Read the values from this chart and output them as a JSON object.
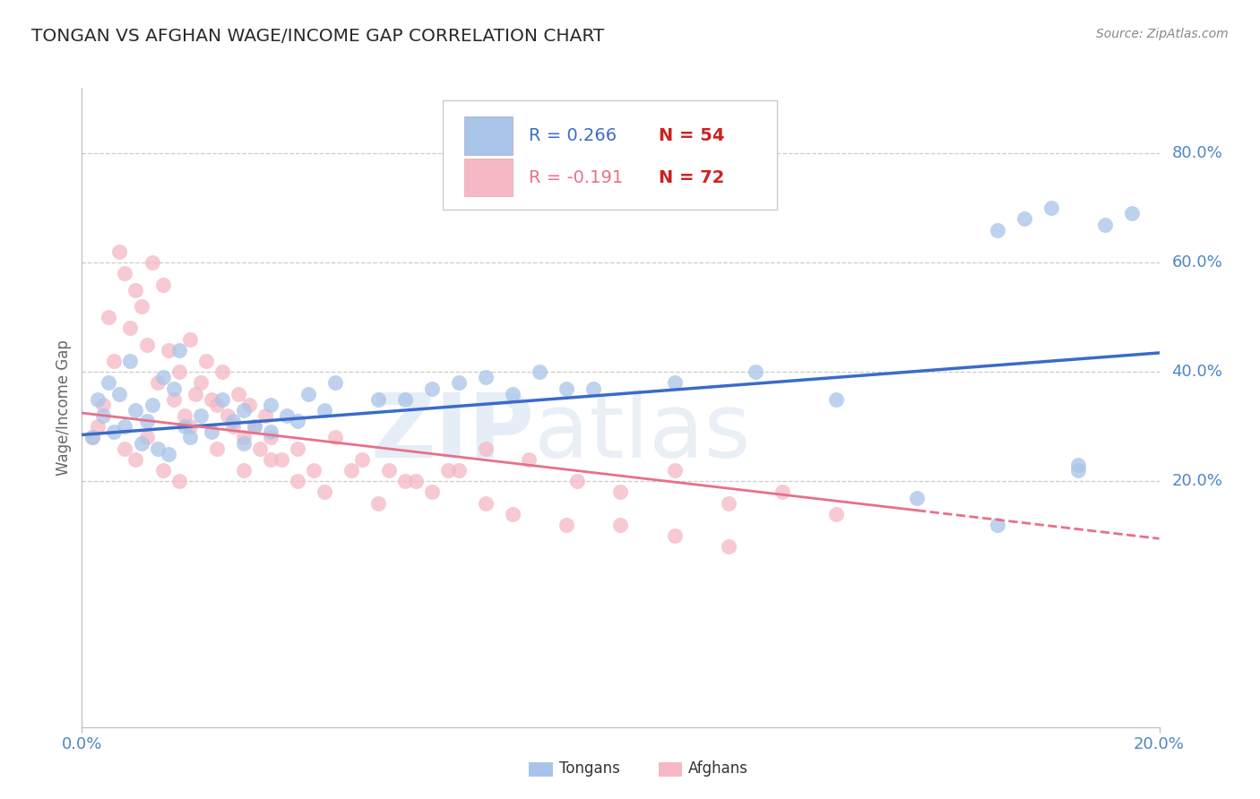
{
  "title": "TONGAN VS AFGHAN WAGE/INCOME GAP CORRELATION CHART",
  "source_text": "Source: ZipAtlas.com",
  "ylabel": "Wage/Income Gap",
  "watermark_zip": "ZIP",
  "watermark_atlas": "atlas",
  "xmin": 0.0,
  "xmax": 0.2,
  "ymin": -0.25,
  "ymax": 0.92,
  "ytick_vals": [
    0.2,
    0.4,
    0.6,
    0.8
  ],
  "ytick_labels": [
    "20.0%",
    "40.0%",
    "60.0%",
    "80.0%"
  ],
  "xtick_vals": [
    0.0,
    0.2
  ],
  "xtick_labels": [
    "0.0%",
    "20.0%"
  ],
  "legend_tongan_R": "R = 0.266",
  "legend_tongan_N": "N = 54",
  "legend_afghan_R": "R = -0.191",
  "legend_afghan_N": "N = 72",
  "tongan_color": "#A8C4E8",
  "afghan_color": "#F5B8C4",
  "tongan_line_color": "#3B6BC9",
  "afghan_line_color": "#E8708A",
  "legend_color_tongan": "#3B6BC9",
  "legend_color_afghan": "#E8708A",
  "legend_N_color": "#CC2222",
  "grid_color": "#CCCCCC",
  "title_color": "#2A2A2A",
  "axis_tick_color": "#4D86C5",
  "background_color": "#FFFFFF",
  "tongan_scatter_x": [
    0.002,
    0.003,
    0.004,
    0.005,
    0.006,
    0.007,
    0.008,
    0.009,
    0.01,
    0.011,
    0.012,
    0.013,
    0.014,
    0.015,
    0.016,
    0.017,
    0.018,
    0.019,
    0.02,
    0.022,
    0.024,
    0.026,
    0.028,
    0.03,
    0.032,
    0.035,
    0.038,
    0.042,
    0.047,
    0.055,
    0.065,
    0.075,
    0.085,
    0.095,
    0.11,
    0.125,
    0.14,
    0.155,
    0.17,
    0.185,
    0.17,
    0.175,
    0.18,
    0.185,
    0.19,
    0.195,
    0.06,
    0.07,
    0.08,
    0.09,
    0.03,
    0.035,
    0.04,
    0.045
  ],
  "tongan_scatter_y": [
    0.28,
    0.35,
    0.32,
    0.38,
    0.29,
    0.36,
    0.3,
    0.42,
    0.33,
    0.27,
    0.31,
    0.34,
    0.26,
    0.39,
    0.25,
    0.37,
    0.44,
    0.3,
    0.28,
    0.32,
    0.29,
    0.35,
    0.31,
    0.33,
    0.3,
    0.34,
    0.32,
    0.36,
    0.38,
    0.35,
    0.37,
    0.39,
    0.4,
    0.37,
    0.38,
    0.4,
    0.35,
    0.17,
    0.12,
    0.23,
    0.66,
    0.68,
    0.7,
    0.22,
    0.67,
    0.69,
    0.35,
    0.38,
    0.36,
    0.37,
    0.27,
    0.29,
    0.31,
    0.33
  ],
  "afghan_scatter_x": [
    0.002,
    0.003,
    0.004,
    0.005,
    0.006,
    0.007,
    0.008,
    0.009,
    0.01,
    0.011,
    0.012,
    0.013,
    0.014,
    0.015,
    0.016,
    0.017,
    0.018,
    0.019,
    0.02,
    0.021,
    0.022,
    0.023,
    0.024,
    0.025,
    0.026,
    0.027,
    0.028,
    0.029,
    0.03,
    0.031,
    0.032,
    0.033,
    0.034,
    0.035,
    0.037,
    0.04,
    0.043,
    0.047,
    0.052,
    0.057,
    0.062,
    0.068,
    0.075,
    0.083,
    0.092,
    0.1,
    0.11,
    0.12,
    0.13,
    0.14,
    0.008,
    0.01,
    0.012,
    0.015,
    0.018,
    0.02,
    0.025,
    0.03,
    0.035,
    0.04,
    0.045,
    0.05,
    0.055,
    0.06,
    0.065,
    0.07,
    0.075,
    0.08,
    0.09,
    0.1,
    0.11,
    0.12
  ],
  "afghan_scatter_y": [
    0.28,
    0.3,
    0.34,
    0.5,
    0.42,
    0.62,
    0.58,
    0.48,
    0.55,
    0.52,
    0.45,
    0.6,
    0.38,
    0.56,
    0.44,
    0.35,
    0.4,
    0.32,
    0.46,
    0.36,
    0.38,
    0.42,
    0.35,
    0.34,
    0.4,
    0.32,
    0.3,
    0.36,
    0.28,
    0.34,
    0.3,
    0.26,
    0.32,
    0.28,
    0.24,
    0.26,
    0.22,
    0.28,
    0.24,
    0.22,
    0.2,
    0.22,
    0.26,
    0.24,
    0.2,
    0.18,
    0.22,
    0.16,
    0.18,
    0.14,
    0.26,
    0.24,
    0.28,
    0.22,
    0.2,
    0.3,
    0.26,
    0.22,
    0.24,
    0.2,
    0.18,
    0.22,
    0.16,
    0.2,
    0.18,
    0.22,
    0.16,
    0.14,
    0.12,
    0.12,
    0.1,
    0.08
  ],
  "tongan_trend_x": [
    0.0,
    0.2
  ],
  "tongan_trend_y": [
    0.285,
    0.435
  ],
  "afghan_trend_x": [
    0.0,
    0.2
  ],
  "afghan_trend_y": [
    0.325,
    0.095
  ],
  "afghan_trend_solid_end": 0.155,
  "bottom_legend_labels": [
    "Tongans",
    "Afghans"
  ]
}
